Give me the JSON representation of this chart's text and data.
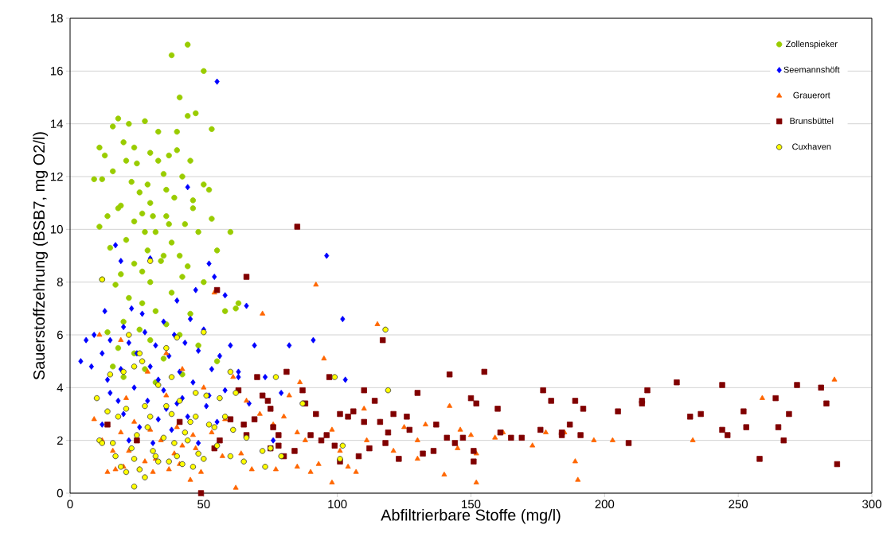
{
  "chart_data": {
    "type": "scatter",
    "xlabel": "Abfiltrierbare Stoffe (mg/l)",
    "ylabel": "Sauerstoffzehrung (BSB7, mg O2/l)",
    "xlim": [
      0,
      300
    ],
    "xticks": [
      0,
      50,
      100,
      150,
      200,
      250,
      300
    ],
    "ylim": [
      0,
      18
    ],
    "yticks": [
      0,
      2,
      4,
      6,
      8,
      10,
      12,
      14,
      16,
      18
    ],
    "grid": "y",
    "legend": "top right",
    "series": [
      {
        "name": "Zollenspieker",
        "color": "#99cc00",
        "marker": "circle",
        "x": [
          44,
          38,
          50,
          41,
          47,
          44,
          18,
          28,
          22,
          16,
          33,
          53,
          40,
          11,
          20,
          13,
          30,
          37,
          45,
          25,
          16,
          35,
          42,
          23,
          29,
          50,
          9,
          12,
          39,
          30,
          46,
          19,
          27,
          36,
          53,
          14,
          24,
          43,
          11,
          32,
          48,
          60,
          21,
          38,
          15,
          29,
          41,
          55,
          34,
          24,
          19,
          44,
          30,
          12,
          50,
          38,
          22,
          27,
          17,
          63,
          32,
          45,
          58,
          20,
          36,
          26,
          14,
          41,
          30,
          18,
          48,
          24,
          35,
          16,
          28,
          42,
          20,
          32,
          55,
          62,
          37,
          26,
          33,
          40,
          21,
          46,
          28,
          35,
          18,
          31,
          52,
          24,
          36,
          42,
          27
        ],
        "values": [
          17.0,
          16.6,
          16.0,
          15.0,
          14.4,
          14.3,
          14.2,
          14.1,
          14.0,
          13.9,
          13.7,
          13.8,
          13.7,
          13.1,
          13.3,
          12.8,
          12.9,
          12.8,
          12.6,
          12.5,
          12.2,
          12.1,
          12.0,
          11.8,
          11.7,
          11.7,
          11.9,
          11.9,
          11.2,
          11.0,
          11.1,
          10.9,
          10.6,
          10.5,
          10.4,
          10.5,
          10.3,
          10.2,
          10.1,
          9.9,
          9.9,
          9.9,
          9.6,
          9.5,
          9.3,
          9.2,
          9.0,
          9.2,
          8.8,
          8.7,
          8.3,
          8.6,
          8.0,
          8.1,
          8.0,
          7.6,
          7.4,
          7.2,
          7.9,
          7.2,
          6.9,
          6.8,
          6.9,
          6.5,
          6.4,
          6.2,
          6.1,
          6.0,
          5.8,
          5.5,
          5.6,
          5.3,
          5.1,
          4.8,
          4.7,
          4.5,
          4.4,
          4.2,
          5.0,
          7.0,
          10.2,
          11.4,
          12.6,
          13.0,
          12.6,
          10.8,
          9.9,
          9.0,
          10.8,
          10.5,
          11.5,
          13.1,
          11.5,
          8.2,
          8.4
        ]
      },
      {
        "name": "Seemannshöft",
        "color": "#0000ff",
        "marker": "diamond",
        "x": [
          55,
          44,
          96,
          30,
          17,
          19,
          52,
          54,
          66,
          58,
          40,
          13,
          23,
          35,
          45,
          102,
          9,
          20,
          28,
          50,
          6,
          15,
          32,
          43,
          60,
          69,
          82,
          4,
          12,
          25,
          37,
          48,
          56,
          8,
          19,
          30,
          41,
          53,
          63,
          73,
          91,
          14,
          24,
          35,
          46,
          58,
          103,
          79,
          18,
          29,
          40,
          51,
          67,
          20,
          33,
          44,
          55,
          12,
          26,
          38,
          22,
          31,
          48,
          76,
          36,
          27,
          39,
          47,
          22,
          33,
          15,
          52,
          63,
          42
        ],
        "values": [
          15.6,
          11.6,
          9.0,
          8.9,
          9.4,
          8.8,
          8.7,
          8.2,
          7.1,
          7.5,
          7.3,
          6.9,
          7.0,
          6.5,
          6.6,
          6.6,
          6.0,
          6.3,
          6.1,
          6.2,
          5.8,
          5.8,
          5.6,
          5.7,
          5.6,
          5.6,
          5.6,
          5.0,
          5.3,
          5.3,
          5.2,
          5.4,
          5.2,
          4.8,
          4.7,
          4.8,
          4.6,
          4.7,
          4.4,
          4.4,
          5.8,
          4.3,
          4.0,
          3.9,
          4.2,
          3.9,
          4.3,
          3.8,
          3.5,
          3.5,
          3.4,
          3.3,
          3.4,
          3.0,
          2.8,
          2.9,
          2.7,
          2.6,
          2.5,
          2.4,
          2.0,
          1.9,
          1.9,
          2.0,
          3.2,
          6.8,
          6.0,
          7.7,
          5.7,
          4.3,
          3.8,
          3.7,
          4.6,
          3.6
        ]
      },
      {
        "name": "Grauerort",
        "color": "#ff6600",
        "marker": "triangle",
        "x": [
          286,
          259,
          233,
          196,
          189,
          190,
          178,
          173,
          162,
          152,
          152,
          150,
          142,
          140,
          133,
          130,
          125,
          115,
          116,
          111,
          110,
          104,
          98,
          95,
          92,
          88,
          85,
          86,
          72,
          71,
          66,
          64,
          62,
          61,
          57,
          53,
          54,
          50,
          49,
          47,
          46,
          45,
          42,
          41,
          40,
          39,
          37,
          36,
          34,
          32,
          31,
          30,
          29,
          28,
          26,
          25,
          24,
          22,
          21,
          20,
          19,
          17,
          16,
          14,
          12,
          11,
          9,
          19,
          36,
          42,
          58,
          68,
          80,
          76,
          77,
          93,
          98,
          101,
          85,
          82,
          90,
          107,
          121,
          145,
          146,
          130,
          159,
          203,
          185
        ],
        "values": [
          4.3,
          3.6,
          2.0,
          2.0,
          1.2,
          0.5,
          2.3,
          1.8,
          2.3,
          1.5,
          0.4,
          2.2,
          3.3,
          0.7,
          2.6,
          1.3,
          2.5,
          6.4,
          2.7,
          2.0,
          3.2,
          1.0,
          0.4,
          5.1,
          7.9,
          2.0,
          1.0,
          4.2,
          6.8,
          3.0,
          3.5,
          1.5,
          0.2,
          4.4,
          1.4,
          2.3,
          7.6,
          4.0,
          0.8,
          1.7,
          2.2,
          0.5,
          4.7,
          1.1,
          2.5,
          1.5,
          0.9,
          3.7,
          2.0,
          1.3,
          0.8,
          2.4,
          4.6,
          1.2,
          0.9,
          2.0,
          2.7,
          1.6,
          3.6,
          1.0,
          2.3,
          0.9,
          1.6,
          0.8,
          2.0,
          6.0,
          2.8,
          5.8,
          5.3,
          1.8,
          2.8,
          0.9,
          2.9,
          2.6,
          0.9,
          1.1,
          2.4,
          1.6,
          2.3,
          3.7,
          0.8,
          0.8,
          1.6,
          1.7,
          2.4,
          2.0,
          2.1,
          2.0,
          2.3
        ]
      },
      {
        "name": "Brunsbüttel",
        "color": "#800000",
        "marker": "square",
        "x": [
          287,
          283,
          281,
          272,
          269,
          267,
          265,
          264,
          258,
          253,
          252,
          246,
          244,
          244,
          236,
          232,
          227,
          216,
          214,
          214,
          209,
          205,
          192,
          191,
          189,
          187,
          184,
          184,
          180,
          177,
          176,
          169,
          165,
          161,
          160,
          155,
          152,
          151,
          151,
          150,
          147,
          144,
          142,
          141,
          137,
          136,
          132,
          130,
          127,
          126,
          123,
          121,
          119,
          118,
          117,
          116,
          114,
          112,
          110,
          110,
          106,
          104,
          101,
          101,
          97,
          96,
          94,
          92,
          90,
          87,
          85,
          84,
          81,
          80,
          78,
          76,
          75,
          74,
          72,
          70,
          69,
          66,
          65,
          63,
          60,
          56,
          55,
          54,
          49,
          41,
          25,
          14,
          78,
          66,
          88,
          99,
          108,
          75
        ],
        "values": [
          1.1,
          3.4,
          4.0,
          4.1,
          3.0,
          2.0,
          2.5,
          3.6,
          1.3,
          2.5,
          3.1,
          2.2,
          4.1,
          2.4,
          3.0,
          2.9,
          4.2,
          3.9,
          3.5,
          3.4,
          1.9,
          3.1,
          3.2,
          2.2,
          3.5,
          2.6,
          2.3,
          2.2,
          3.5,
          3.9,
          2.4,
          2.1,
          2.1,
          2.3,
          3.2,
          4.6,
          3.4,
          1.6,
          1.2,
          3.6,
          2.1,
          1.9,
          4.5,
          2.1,
          2.6,
          1.6,
          1.5,
          3.8,
          2.4,
          2.9,
          1.3,
          3.0,
          2.3,
          1.9,
          5.8,
          2.7,
          3.5,
          1.7,
          3.9,
          2.7,
          3.1,
          2.9,
          1.2,
          3.0,
          4.4,
          2.2,
          2.0,
          3.0,
          2.2,
          3.9,
          10.1,
          1.6,
          4.6,
          1.4,
          1.8,
          2.5,
          3.2,
          3.5,
          3.7,
          4.4,
          2.8,
          8.2,
          2.6,
          3.9,
          2.8,
          2.0,
          7.7,
          1.7,
          0.0,
          2.7,
          2.0,
          2.6,
          2.2,
          2.2,
          3.4,
          1.8,
          1.4,
          1.7
        ]
      },
      {
        "name": "Cuxhaven",
        "color": "#ffff00",
        "marker": "circle",
        "x": [
          12,
          118,
          30,
          50,
          36,
          60,
          99,
          77,
          119,
          10,
          24,
          47,
          56,
          51,
          62,
          87,
          26,
          20,
          33,
          41,
          14,
          18,
          28,
          38,
          45,
          58,
          61,
          66,
          72,
          75,
          79,
          21,
          29,
          35,
          43,
          52,
          11,
          16,
          23,
          31,
          39,
          48,
          55,
          60,
          65,
          73,
          101,
          102,
          24,
          33,
          42,
          50,
          19,
          26,
          37,
          46,
          21,
          28,
          24,
          17,
          32,
          40,
          30,
          44,
          54,
          36,
          25,
          12,
          15,
          40,
          27,
          22,
          38,
          47
        ],
        "values": [
          8.1,
          6.2,
          8.8,
          6.1,
          5.5,
          4.6,
          4.4,
          4.4,
          3.9,
          3.6,
          4.8,
          3.8,
          3.6,
          3.7,
          3.8,
          3.4,
          5.3,
          4.6,
          4.1,
          3.5,
          3.1,
          2.9,
          3.3,
          3.0,
          2.7,
          2.9,
          2.4,
          2.1,
          1.6,
          1.7,
          1.4,
          3.2,
          2.5,
          2.1,
          2.3,
          2.6,
          2.0,
          1.9,
          1.7,
          1.6,
          1.9,
          1.5,
          1.8,
          1.4,
          1.2,
          1.0,
          1.3,
          1.8,
          1.3,
          1.2,
          1.1,
          1.3,
          1.0,
          0.9,
          1.2,
          1.0,
          0.8,
          0.6,
          0.25,
          1.4,
          1.4,
          1.4,
          2.9,
          2.0,
          2.5,
          3.3,
          2.2,
          1.9,
          4.5,
          5.9,
          5.0,
          6.0,
          4.4,
          2.9
        ]
      }
    ]
  }
}
